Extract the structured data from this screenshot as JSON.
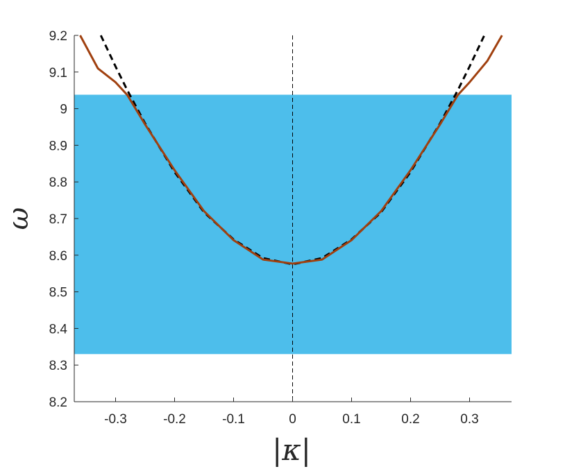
{
  "chart_data": {
    "type": "line",
    "title": "",
    "xlabel": "|κ|",
    "ylabel": "ω",
    "xlim": [
      -0.37,
      0.37
    ],
    "ylim": [
      8.2,
      9.2
    ],
    "xticks": [
      -0.3,
      -0.2,
      -0.1,
      0,
      0.1,
      0.2,
      0.3
    ],
    "xtick_labels": [
      "-0.3",
      "-0.2",
      "-0.1",
      "0",
      "0.1",
      "0.2",
      "0.3"
    ],
    "yticks": [
      8.2,
      8.3,
      8.4,
      8.5,
      8.6,
      8.7,
      8.8,
      8.9,
      9,
      9.1,
      9.2
    ],
    "ytick_labels": [
      "8.2",
      "8.3",
      "8.4",
      "8.5",
      "8.6",
      "8.7",
      "8.8",
      "8.9",
      "9",
      "9.1",
      "9.2"
    ],
    "grid": false,
    "band": {
      "y_min": 8.33,
      "y_max": 9.038,
      "color": "#4dbeeb"
    },
    "reference_line": {
      "x": 0,
      "style": "dashed",
      "color": "#000000"
    },
    "series": [
      {
        "style": "dashed",
        "color": "#000000",
        "x": [
          -0.325,
          -0.3,
          -0.28,
          -0.25,
          -0.2,
          -0.15,
          -0.1,
          -0.05,
          0,
          0.05,
          0.1,
          0.15,
          0.2,
          0.25,
          0.28,
          0.3,
          0.325
        ],
        "y": [
          9.2,
          9.115,
          9.05,
          8.96,
          8.827,
          8.717,
          8.643,
          8.592,
          8.575,
          8.592,
          8.643,
          8.717,
          8.827,
          8.96,
          9.05,
          9.115,
          9.2
        ]
      },
      {
        "style": "solid",
        "color": "#a0400f",
        "x": [
          -0.36,
          -0.33,
          -0.3,
          -0.28,
          -0.25,
          -0.2,
          -0.15,
          -0.1,
          -0.05,
          0,
          0.05,
          0.1,
          0.15,
          0.2,
          0.25,
          0.28,
          0.3,
          0.33,
          0.355
        ],
        "y": [
          9.2,
          9.11,
          9.072,
          9.037,
          8.957,
          8.832,
          8.72,
          8.641,
          8.588,
          8.577,
          8.588,
          8.641,
          8.72,
          8.832,
          8.957,
          9.037,
          9.072,
          9.13,
          9.2
        ]
      }
    ]
  }
}
